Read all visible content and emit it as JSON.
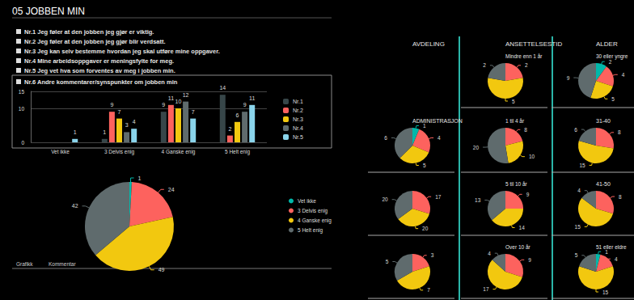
{
  "title": "05 JOBBEN MIN",
  "questions": [
    "Nr.1 Jeg føler at den jobben jeg gjør er viktig.",
    "Nr.2 Jeg føler at den jobben jeg gjør blir verdsatt.",
    "Nr.3 Jeg kan selv bestemme hvordan jeg skal utføre mine oppgaver.",
    "Nr.4 Mine arbeidsoppgaver er meningsfylte for meg.",
    "Nr.5 Jeg vet hva som forventes av meg i jobben min.",
    "Nr.6 Andre kommentarer/synspunkter om jobben min"
  ],
  "tabs": [
    "Grafikk",
    "Kommentar"
  ],
  "chart_data": [
    {
      "type": "bar",
      "categories": [
        "Vet ikke",
        "3 Delvis enig",
        "4 Ganske enig",
        "5 Helt enig"
      ],
      "series": [
        {
          "name": "Nr.1",
          "color": "#374649",
          "values": [
            null,
            1,
            9,
            14
          ]
        },
        {
          "name": "Nr.2",
          "color": "#fd625e",
          "values": [
            null,
            9,
            11,
            2
          ]
        },
        {
          "name": "Nr.3",
          "color": "#f2c80f",
          "values": [
            null,
            7,
            10,
            6
          ]
        },
        {
          "name": "Nr.4",
          "color": "#5f6b6d",
          "values": [
            null,
            3,
            12,
            9
          ]
        },
        {
          "name": "Nr.5",
          "color": "#8ad4eb",
          "values": [
            1,
            4,
            7,
            11
          ]
        }
      ],
      "ylim": [
        0,
        15
      ],
      "yticks": [
        0,
        10
      ],
      "grid": true,
      "legend": "right",
      "data_labels": true
    },
    {
      "type": "pie",
      "categories": [
        "Vet ikke",
        "3 Delvis enig",
        "4 Ganske enig",
        "5 Helt enig"
      ],
      "values": [
        1,
        24,
        49,
        42
      ],
      "colors": [
        "#01b8aa",
        "#fd625e",
        "#f2c80f",
        "#5f6b6d"
      ],
      "legend": "right",
      "data_labels": true
    }
  ],
  "breakdowns": [
    {
      "heading": "AVDELING",
      "charts": [
        {
          "type": "pie",
          "title": "ADMINISTRASJON",
          "categories": [
            "Vet ikke",
            "3 Delvis enig",
            "4 Ganske enig",
            "5 Helt enig"
          ],
          "values": [
            1,
            4,
            5,
            6
          ],
          "colors": [
            "#01b8aa",
            "#fd625e",
            "#f2c80f",
            "#5f6b6d"
          ],
          "data_labels": true
        },
        {
          "type": "pie",
          "categories": [
            "3 Delvis enig",
            "4 Ganske enig",
            "5 Helt enig"
          ],
          "values": [
            17,
            20,
            20
          ],
          "colors": [
            "#fd625e",
            "#f2c80f",
            "#5f6b6d"
          ],
          "data_labels": true
        },
        {
          "type": "pie",
          "categories": [
            "3 Delvis enig",
            "4 Ganske enig",
            "5 Helt enig"
          ],
          "values": [
            3,
            7,
            5
          ],
          "colors": [
            "#fd625e",
            "#f2c80f",
            "#5f6b6d"
          ],
          "data_labels": true
        }
      ]
    },
    {
      "heading": "ANSETTELSESTID",
      "charts": [
        {
          "type": "pie",
          "title": "Mindre enn 1 år",
          "categories": [
            "3 Delvis enig",
            "4 Ganske enig",
            "5 Helt enig"
          ],
          "values": [
            2,
            5,
            2
          ],
          "colors": [
            "#fd625e",
            "#f2c80f",
            "#5f6b6d"
          ],
          "data_labels": true
        },
        {
          "type": "pie",
          "title": "1 til 4 år",
          "categories": [
            "3 Delvis enig",
            "4 Ganske enig",
            "5 Helt enig"
          ],
          "values": [
            8,
            10,
            20
          ],
          "colors": [
            "#fd625e",
            "#f2c80f",
            "#5f6b6d"
          ],
          "data_labels": true
        },
        {
          "type": "pie",
          "title": "5 til 10 år",
          "categories": [
            "3 Delvis enig",
            "4 Ganske enig",
            "5 Helt enig"
          ],
          "values": [
            9,
            14,
            13
          ],
          "colors": [
            "#fd625e",
            "#f2c80f",
            "#5f6b6d"
          ],
          "data_labels": true
        },
        {
          "type": "pie",
          "title": "Over 10 år",
          "categories": [
            "3 Delvis enig",
            "4 Ganske enig",
            "5 Helt enig"
          ],
          "values": [
            9,
            17,
            4
          ],
          "colors": [
            "#fd625e",
            "#f2c80f",
            "#5f6b6d"
          ],
          "data_labels": true
        }
      ]
    },
    {
      "heading": "ALDER",
      "charts": [
        {
          "type": "pie",
          "title": "30 eller yngre",
          "categories": [
            "Vet ikke",
            "3 Delvis enig",
            "4 Ganske enig",
            "5 Helt enig"
          ],
          "values": [
            2,
            4,
            5,
            9
          ],
          "colors": [
            "#01b8aa",
            "#fd625e",
            "#f2c80f",
            "#5f6b6d"
          ],
          "data_labels": true
        },
        {
          "type": "pie",
          "title": "31-40",
          "categories": [
            "3 Delvis enig",
            "4 Ganske enig",
            "5 Helt enig"
          ],
          "values": [
            8,
            15,
            6
          ],
          "colors": [
            "#fd625e",
            "#f2c80f",
            "#5f6b6d"
          ],
          "data_labels": true
        },
        {
          "type": "pie",
          "title": "41-50",
          "categories": [
            "3 Delvis enig",
            "4 Ganske enig",
            "5 Helt enig"
          ],
          "values": [
            8,
            15,
            4
          ],
          "colors": [
            "#fd625e",
            "#f2c80f",
            "#5f6b6d"
          ],
          "data_labels": true
        },
        {
          "type": "pie",
          "title": "51 eller eldre",
          "categories": [
            "Vet ikke",
            "3 Delvis enig",
            "4 Ganske enig",
            "5 Helt enig"
          ],
          "values": [
            1,
            4,
            15,
            5
          ],
          "colors": [
            "#01b8aa",
            "#fd625e",
            "#f2c80f",
            "#5f6b6d"
          ],
          "data_labels": true
        }
      ]
    }
  ]
}
